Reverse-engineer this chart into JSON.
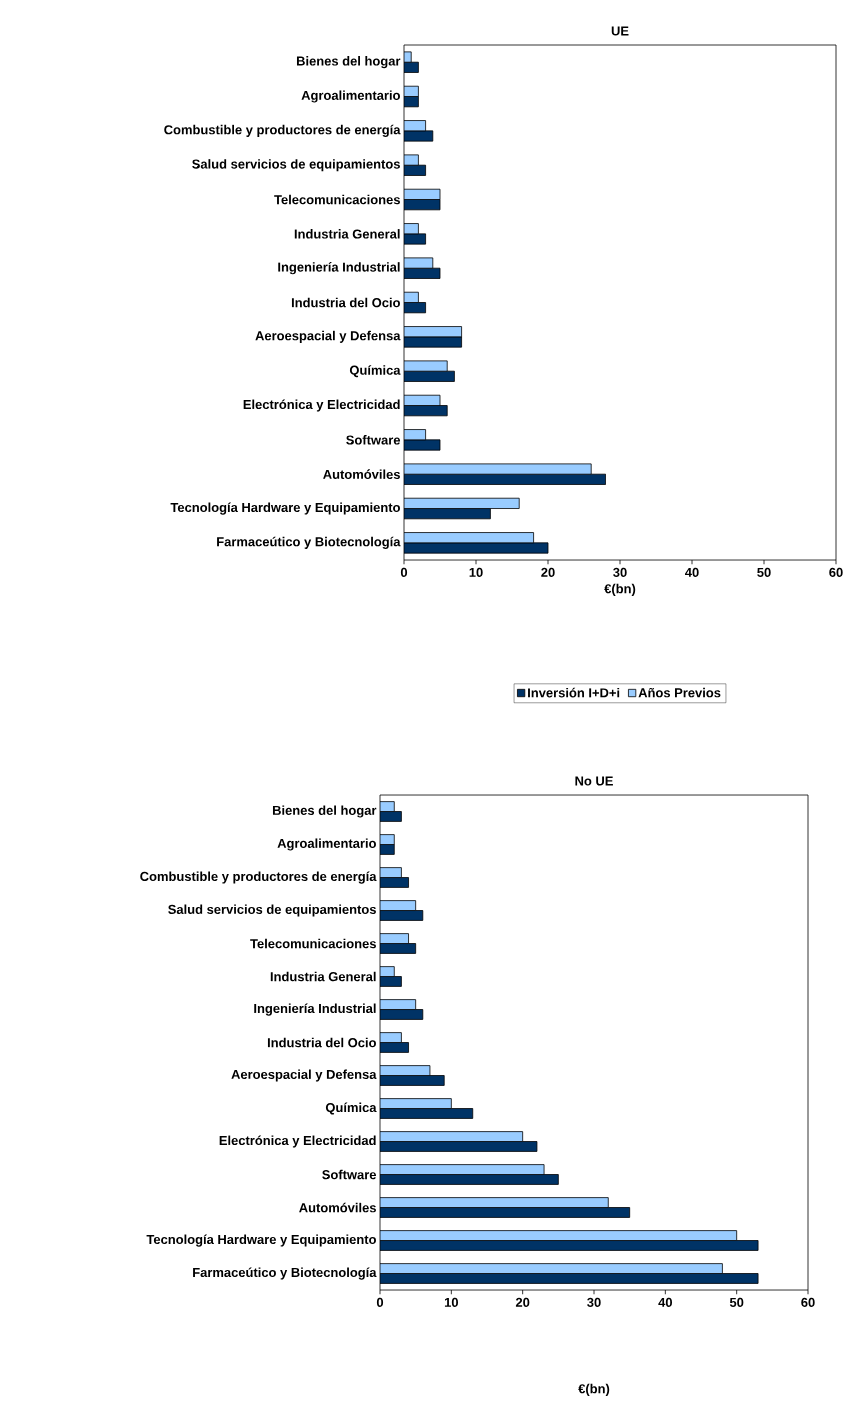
{
  "chart_data": [
    {
      "type": "bar",
      "orientation": "horizontal",
      "title": "UE",
      "xlabel": "€(bn)",
      "legend": "bottom",
      "categories": [
        "Bienes del hogar",
        "Agroalimentario",
        "Combustible y productores de energía",
        "Salud servicios de equipamientos",
        "Telecomunicaciones",
        "Industria General",
        "Ingeniería Industrial",
        "Industria del Ocio",
        "Aeroespacial y Defensa",
        "Química",
        "Electrónica y Electricidad",
        "Software",
        "Automóviles",
        "Tecnología Hardware y Equipamiento",
        "Farmaceútico y Biotecnología"
      ],
      "series": [
        {
          "name": "Inversión I+D+i",
          "color": "#003366",
          "values": [
            2,
            2,
            4,
            3,
            5,
            3,
            5,
            3,
            8,
            7,
            6,
            5,
            28,
            12,
            20
          ]
        },
        {
          "name": "Años Previos",
          "color": "#99ccff",
          "values": [
            1,
            2,
            3,
            2,
            5,
            2,
            4,
            2,
            8,
            6,
            5,
            3,
            26,
            16,
            18
          ]
        }
      ],
      "xlim": [
        0,
        60
      ],
      "xticks": [
        0,
        10,
        20,
        30,
        40,
        50,
        60
      ]
    },
    {
      "type": "bar",
      "orientation": "horizontal",
      "title": "No UE",
      "xlabel": "€(bn)",
      "categories": [
        "Bienes del hogar",
        "Agroalimentario",
        "Combustible y productores de energía",
        "Salud servicios de equipamientos",
        "Telecomunicaciones",
        "Industria General",
        "Ingeniería Industrial",
        "Industria del Ocio",
        "Aeroespacial y Defensa",
        "Química",
        "Electrónica y Electricidad",
        "Software",
        "Automóviles",
        "Tecnología Hardware y Equipamiento",
        "Farmaceútico y Biotecnología"
      ],
      "series": [
        {
          "color": "#003366",
          "values": [
            3,
            2,
            4,
            6,
            5,
            3,
            6,
            4,
            9,
            13,
            22,
            25,
            35,
            53,
            53
          ]
        },
        {
          "color": "#99ccff",
          "values": [
            2,
            2,
            3,
            5,
            4,
            2,
            5,
            3,
            7,
            10,
            20,
            23,
            32,
            50,
            48
          ]
        }
      ],
      "xlim": [
        0,
        60
      ],
      "xticks": [
        0,
        10,
        20,
        30,
        40,
        50,
        60
      ]
    }
  ]
}
